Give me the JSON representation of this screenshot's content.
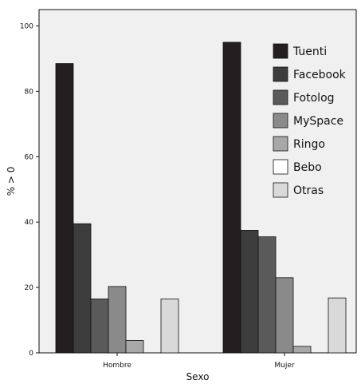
{
  "chart_data": {
    "type": "bar",
    "categories": [
      "Hombre",
      "Mujer"
    ],
    "xlabel": "Sexo",
    "ylabel": "% > 0",
    "ylim": [
      0,
      105
    ],
    "yticks": [
      0,
      20,
      40,
      60,
      80,
      100
    ],
    "grid": false,
    "legend_position": "top-right",
    "series": [
      {
        "name": "Tuenti",
        "color": "#231f20",
        "values": [
          88.5,
          95.0
        ]
      },
      {
        "name": "Facebook",
        "color": "#3d3d3d",
        "values": [
          39.5,
          37.5
        ]
      },
      {
        "name": "Fotolog",
        "color": "#5a5a5a",
        "values": [
          16.5,
          35.5
        ]
      },
      {
        "name": "MySpace",
        "color": "#8a8a8a",
        "values": [
          20.3,
          23.0
        ]
      },
      {
        "name": "Ringo",
        "color": "#a8a8a8",
        "values": [
          3.8,
          2.0
        ]
      },
      {
        "name": "Bebo",
        "color": "#ffffff",
        "values": [
          0,
          0
        ]
      },
      {
        "name": "Otras",
        "color": "#d9d9d9",
        "values": [
          16.5,
          16.8
        ]
      }
    ]
  },
  "colors": {
    "plot_background": "#f0f0f0",
    "axis": "#111111",
    "bar_stroke": "#111111"
  }
}
